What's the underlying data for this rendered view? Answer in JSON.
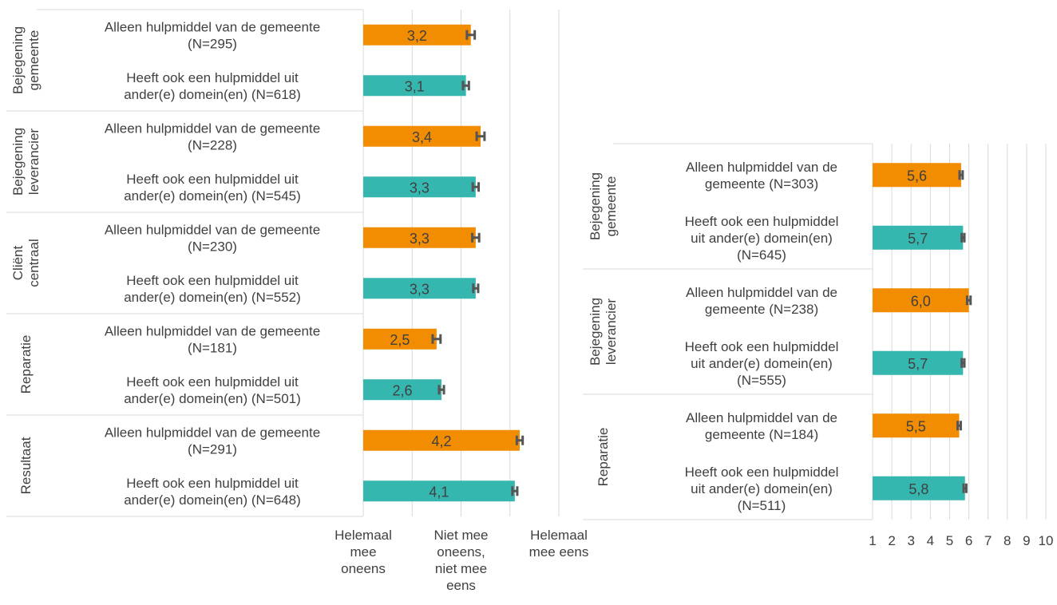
{
  "colors": {
    "only_municipality": "#f28c00",
    "other_domains": "#35b7b0",
    "error_bar": "#555555",
    "grid": "#d9d9d9",
    "text": "#404040"
  },
  "chart_data": [
    {
      "type": "bar",
      "orientation": "horizontal",
      "xlim": [
        1,
        5
      ],
      "grid": true,
      "x_tick_labels": [
        {
          "value": 1,
          "label": "Helemaal mee oneens"
        },
        {
          "value": 3,
          "label": "Niet mee oneens, niet mee eens"
        },
        {
          "value": 5,
          "label": "Helemaal mee eens"
        }
      ],
      "groups": [
        {
          "name": "Bejegening gemeente",
          "bars": [
            {
              "label": "Alleen hulpmiddel van de gemeente (N=295)",
              "value": 3.2,
              "value_label": "3,2",
              "error": 0.08,
              "series": "only_municipality"
            },
            {
              "label": "Heeft ook een hulpmiddel uit ander(e) domein(en) (N=618)",
              "value": 3.1,
              "value_label": "3,1",
              "error": 0.06,
              "series": "other_domains"
            }
          ]
        },
        {
          "name": "Bejegening leverancier",
          "bars": [
            {
              "label": "Alleen hulpmiddel van de gemeente (N=228)",
              "value": 3.4,
              "value_label": "3,4",
              "error": 0.08,
              "series": "only_municipality"
            },
            {
              "label": "Heeft ook een hulpmiddel uit ander(e) domein(en) (N=545)",
              "value": 3.3,
              "value_label": "3,3",
              "error": 0.06,
              "series": "other_domains"
            }
          ]
        },
        {
          "name": "Cliënt centraal",
          "bars": [
            {
              "label": "Alleen hulpmiddel van de gemeente (N=230)",
              "value": 3.3,
              "value_label": "3,3",
              "error": 0.07,
              "series": "only_municipality"
            },
            {
              "label": "Heeft ook een hulpmiddel uit ander(e) domein(en) (N=552)",
              "value": 3.3,
              "value_label": "3,3",
              "error": 0.05,
              "series": "other_domains"
            }
          ]
        },
        {
          "name": "Reparatie",
          "bars": [
            {
              "label": "Alleen hulpmiddel van de gemeente (N=181)",
              "value": 2.5,
              "value_label": "2,5",
              "error": 0.08,
              "series": "only_municipality"
            },
            {
              "label": "Heeft ook een hulpmiddel uit ander(e) domein(en) (N=501)",
              "value": 2.6,
              "value_label": "2,6",
              "error": 0.05,
              "series": "other_domains"
            }
          ]
        },
        {
          "name": "Resultaat",
          "bars": [
            {
              "label": "Alleen hulpmiddel van de gemeente (N=291)",
              "value": 4.2,
              "value_label": "4,2",
              "error": 0.06,
              "series": "only_municipality"
            },
            {
              "label": "Heeft ook een hulpmiddel uit ander(e) domein(en) (N=648)",
              "value": 4.1,
              "value_label": "4,1",
              "error": 0.05,
              "series": "other_domains"
            }
          ]
        }
      ]
    },
    {
      "type": "bar",
      "orientation": "horizontal",
      "xlim": [
        1,
        10
      ],
      "grid": true,
      "x_tick_labels": [
        {
          "value": 1,
          "label": "1"
        },
        {
          "value": 2,
          "label": "2"
        },
        {
          "value": 3,
          "label": "3"
        },
        {
          "value": 4,
          "label": "4"
        },
        {
          "value": 5,
          "label": "5"
        },
        {
          "value": 6,
          "label": "6"
        },
        {
          "value": 7,
          "label": "7"
        },
        {
          "value": 8,
          "label": "8"
        },
        {
          "value": 9,
          "label": "9"
        },
        {
          "value": 10,
          "label": "10"
        }
      ],
      "groups": [
        {
          "name": "Bejegening gemeente",
          "bars": [
            {
              "label": "Alleen hulpmiddel van de gemeente (N=303)",
              "value": 5.6,
              "value_label": "5,6",
              "error": 0.08,
              "series": "only_municipality"
            },
            {
              "label": "Heeft ook een hulpmiddel uit ander(e) domein(en) (N=645)",
              "value": 5.7,
              "value_label": "5,7",
              "error": 0.07,
              "series": "other_domains"
            }
          ]
        },
        {
          "name": "Bejegening leverancier",
          "bars": [
            {
              "label": "Alleen hulpmiddel van de gemeente (N=238)",
              "value": 6.0,
              "value_label": "6,0",
              "error": 0.09,
              "series": "only_municipality"
            },
            {
              "label": "Heeft ook een hulpmiddel uit ander(e) domein(en) (N=555)",
              "value": 5.7,
              "value_label": "5,7",
              "error": 0.07,
              "series": "other_domains"
            }
          ]
        },
        {
          "name": "Reparatie",
          "bars": [
            {
              "label": "Alleen hulpmiddel van de gemeente (N=184)",
              "value": 5.5,
              "value_label": "5,5",
              "error": 0.08,
              "series": "only_municipality"
            },
            {
              "label": "Heeft ook een hulpmiddel uit ander(e) domein(en) (N=511)",
              "value": 5.8,
              "value_label": "5,8",
              "error": 0.07,
              "series": "other_domains"
            }
          ]
        }
      ]
    }
  ]
}
